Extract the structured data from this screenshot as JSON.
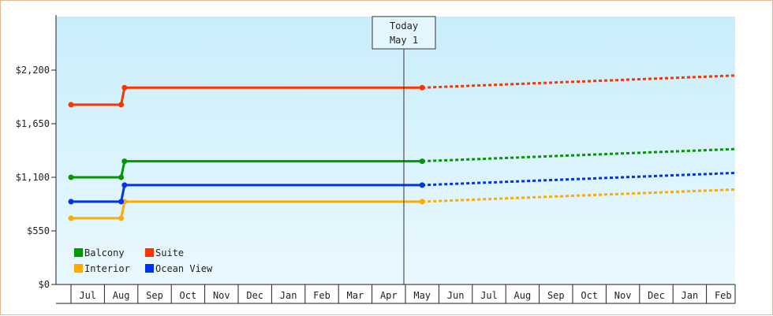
{
  "chart_data": {
    "type": "line",
    "style": "step",
    "y_ticks": [
      "$0",
      "$550",
      "$1,100",
      "$1,650",
      "$2,200"
    ],
    "ylim": [
      0,
      2750
    ],
    "x_months": [
      "Jul",
      "Aug",
      "Sep",
      "Oct",
      "Nov",
      "Dec",
      "Jan",
      "Feb",
      "Mar",
      "Apr",
      "May",
      "Jun",
      "Jul",
      "Aug",
      "Sep",
      "Oct",
      "Nov",
      "Dec",
      "Jan",
      "Feb"
    ],
    "today_label_line1": "Today",
    "today_label_line2": "May 1",
    "grid": false,
    "background": "light-blue-gradient",
    "legend_placement": "bottom-left",
    "series": [
      {
        "name": "Balcony",
        "color": "#009900",
        "history": [
          [
            -0.5,
            1100
          ],
          [
            1.0,
            1100
          ],
          [
            1.1,
            1265
          ],
          [
            10.0,
            1265
          ]
        ],
        "forecast": [
          [
            10.0,
            1265
          ],
          [
            20.0,
            1390
          ]
        ]
      },
      {
        "name": "Suite",
        "color": "#ff3300",
        "history": [
          [
            -0.5,
            1845
          ],
          [
            1.0,
            1845
          ],
          [
            1.1,
            2020
          ],
          [
            10.0,
            2020
          ]
        ],
        "forecast": [
          [
            10.0,
            2020
          ],
          [
            20.0,
            2145
          ]
        ]
      },
      {
        "name": "Interior",
        "color": "#ffaa00",
        "history": [
          [
            -0.5,
            680
          ],
          [
            1.0,
            680
          ],
          [
            1.1,
            850
          ],
          [
            10.0,
            850
          ]
        ],
        "forecast": [
          [
            10.0,
            850
          ],
          [
            20.0,
            975
          ]
        ]
      },
      {
        "name": "Ocean View",
        "color": "#0033ee",
        "history": [
          [
            -0.5,
            850
          ],
          [
            1.0,
            850
          ],
          [
            1.1,
            1020
          ],
          [
            10.0,
            1020
          ]
        ],
        "forecast": [
          [
            10.0,
            1020
          ],
          [
            20.0,
            1145
          ]
        ]
      }
    ]
  }
}
